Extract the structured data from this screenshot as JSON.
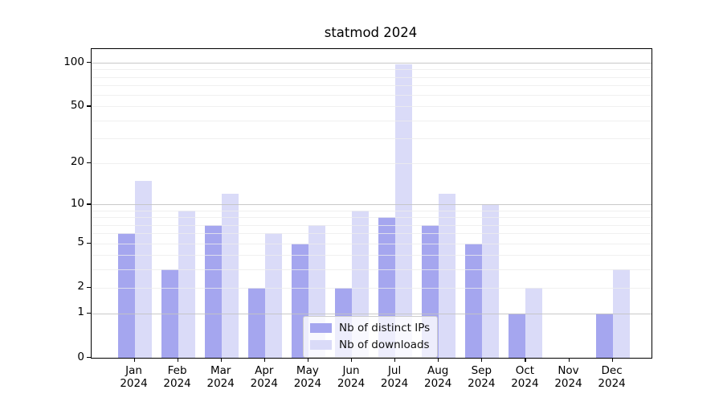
{
  "chart_data": {
    "type": "bar",
    "title": "statmod 2024",
    "categories": [
      "Jan 2024",
      "Feb 2024",
      "Mar 2024",
      "Apr 2024",
      "May 2024",
      "Jun 2024",
      "Jul 2024",
      "Aug 2024",
      "Sep 2024",
      "Oct 2024",
      "Nov 2024",
      "Dec 2024"
    ],
    "series": [
      {
        "name": "Nb of distinct IPs",
        "color": "#a5a6ef",
        "values": [
          6,
          3,
          7,
          2,
          5,
          2,
          8,
          7,
          5,
          1,
          0,
          1
        ]
      },
      {
        "name": "Nb of downloads",
        "color": "#dadbf8",
        "values": [
          15,
          9,
          12,
          6,
          7,
          9,
          97,
          12,
          10,
          2,
          0,
          3
        ]
      }
    ],
    "xlabel": "",
    "ylabel": "",
    "y_ticks": [
      0,
      1,
      2,
      5,
      10,
      20,
      50,
      100
    ],
    "y_minor_gridlines": [
      2,
      3,
      4,
      5,
      6,
      7,
      8,
      9,
      20,
      30,
      40,
      50,
      60,
      70,
      80,
      90
    ],
    "y_major_gridlines": [
      1,
      10,
      100
    ],
    "y_scale": "log1p",
    "ylim": [
      0,
      125
    ],
    "grid": "on",
    "legend_position": "lower center-right inside"
  },
  "colors": {
    "major_grid": "#c3c3c3",
    "minor_grid": "#ececec",
    "spine": "#000000",
    "text": "#111111"
  }
}
